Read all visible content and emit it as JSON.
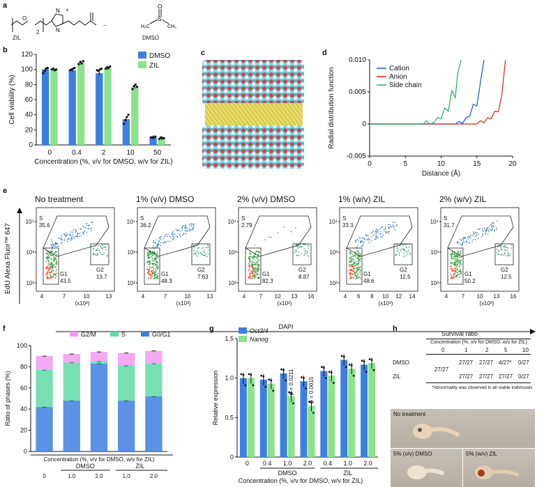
{
  "panel_letters": {
    "a": "a",
    "b": "b",
    "c": "c",
    "d": "d",
    "e": "e",
    "f": "f",
    "g": "g",
    "h": "h"
  },
  "panel_a": {
    "zil_label": "ZIL",
    "dmso_label": "DMSO",
    "plus_sign": "+",
    "minus_sign": "−",
    "subscript_2": "2"
  },
  "panel_e": {
    "xaxis_title": "DAPI",
    "yaxis_title": "EdU Alexa Fluor™ 647",
    "x_unit": "(x10³)"
  },
  "panel_f": {
    "xlabel": "Concentration (%, v/v for DMSO, w/v for ZIL)",
    "group_dmso": "DMSO",
    "group_zil": "ZIL"
  },
  "panel_g": {
    "xlabel": "Concentration (%, v/v for DMSO, w/v for ZIL)",
    "group_dmso": "DMSO",
    "group_zil": "ZIL",
    "p1": "p = 0.0211",
    "p2": "p = 0.0015"
  },
  "panel_h": {
    "title": "Survival ratio",
    "subtitle": "Concentration (%, v/v for DMSO, w/v for ZIL)",
    "headers": [
      "0",
      "1",
      "2",
      "5",
      "10"
    ],
    "rows": [
      {
        "label": "DMSO",
        "values": [
          "27/27",
          "27/27",
          "4/27*",
          "0/27"
        ]
      },
      {
        "label": "ZIL",
        "values": [
          "27/27",
          "27/27",
          "27/27",
          "0/27"
        ]
      }
    ],
    "shared_control": "27/27",
    "footnote": "*Abnormality was observed in all viable indivisuals",
    "photo_labels": [
      "No treatment",
      "5% (v/v) DMSO",
      "5% (w/v) ZIL"
    ]
  },
  "colors": {
    "blue": "#3d7fe0",
    "green": "#8be38a",
    "pink": "#f09bf0",
    "teal": "#5fd9a6",
    "cation": "#1f4fd8",
    "anion": "#e02020",
    "side_chain": "#20b050"
  },
  "chart_data": [
    {
      "panel": "b",
      "type": "bar",
      "categories": [
        "0",
        "0.4",
        "2",
        "10",
        "50"
      ],
      "series": [
        {
          "name": "DMSO",
          "values": [
            100,
            99,
            95,
            34,
            10
          ]
        },
        {
          "name": "ZIL",
          "values": [
            100,
            109,
            102,
            77,
            9
          ]
        }
      ],
      "xlabel": "Concentration (%, v/v for DMSO, w/v for ZIL)",
      "ylabel": "Cell viability (%)",
      "ylim": [
        0,
        120
      ],
      "yticks": [
        0,
        20,
        40,
        60,
        80,
        100,
        120
      ],
      "legend": "top-right"
    },
    {
      "panel": "d",
      "type": "line",
      "xlabel": "Distance (Å)",
      "ylabel": "Radial distribution function",
      "xlim": [
        0,
        20
      ],
      "ylim": [
        -0.005,
        0.01
      ],
      "xticks": [
        0,
        5,
        10,
        15,
        20
      ],
      "yticks": [
        "-0.005",
        "0",
        "0.005",
        "0.010"
      ],
      "series": [
        {
          "name": "Cation",
          "x": [
            0,
            12,
            12.5,
            13,
            13.5,
            14,
            14.5,
            15,
            15.5,
            16
          ],
          "y": [
            0,
            0,
            0.0004,
            0.0001,
            0.001,
            0.0012,
            0.0031,
            0.0028,
            0.0065,
            0.01
          ]
        },
        {
          "name": "Anion",
          "x": [
            0,
            15,
            15.5,
            16,
            16.5,
            17,
            17.5,
            18,
            18.5,
            19
          ],
          "y": [
            0,
            0,
            0.0005,
            0.0002,
            0.001,
            0.0008,
            0.002,
            0.0019,
            0.0045,
            0.01
          ]
        },
        {
          "name": "Side chain",
          "x": [
            0,
            7.5,
            8,
            8.4,
            9,
            9.5,
            10,
            10.5,
            11,
            11.5,
            12,
            12.3,
            12.8
          ],
          "y": [
            0,
            0,
            0.0005,
            0,
            0.0002,
            0.001,
            0.0008,
            0.0025,
            0.002,
            0.0052,
            0.0041,
            0.0078,
            0.01
          ]
        }
      ],
      "legend": "top-left"
    },
    {
      "panel": "e",
      "type": "scatter",
      "plots": [
        {
          "title": "No treatment",
          "gates": [
            {
              "name": "S",
              "value": "35.6"
            },
            {
              "name": "G1",
              "value": "43.5"
            },
            {
              "name": "G2",
              "value": "13.7"
            }
          ],
          "xticks": [
            "4",
            "7",
            "10",
            "13"
          ]
        },
        {
          "title": "1% (v/v) DMSO",
          "gates": [
            {
              "name": "S",
              "value": "36.2"
            },
            {
              "name": "G1",
              "value": "48.3"
            },
            {
              "name": "G2",
              "value": "7.63"
            }
          ],
          "xticks": [
            "4",
            "7",
            "10",
            "13"
          ]
        },
        {
          "title": "2% (v/v) DMSO",
          "gates": [
            {
              "name": "S",
              "value": "2.79"
            },
            {
              "name": "G1",
              "value": "82.3"
            },
            {
              "name": "G2",
              "value": "8.87"
            }
          ],
          "xticks": [
            "4",
            "7",
            "10",
            "13",
            "16"
          ]
        },
        {
          "title": "1% (w/v) ZIL",
          "gates": [
            {
              "name": "S",
              "value": "33.3"
            },
            {
              "name": "G1",
              "value": "48.6"
            },
            {
              "name": "G2",
              "value": "12.5"
            }
          ],
          "xticks": [
            "4",
            "6",
            "8",
            "10",
            "12",
            "14"
          ]
        },
        {
          "title": "2% (w/v) ZIL",
          "gates": [
            {
              "name": "S",
              "value": "31.7"
            },
            {
              "name": "G1",
              "value": "50.2"
            },
            {
              "name": "G2",
              "value": "12.5"
            }
          ],
          "xticks": [
            "4",
            "7",
            "10",
            "13",
            "16"
          ]
        }
      ],
      "yticks": [
        "10²",
        "10³",
        "10⁴"
      ]
    },
    {
      "panel": "f",
      "type": "bar",
      "categories": [
        "0",
        "1.0",
        "2.0",
        "1.0",
        "2.0"
      ],
      "series": [
        {
          "name": "G0/G1",
          "values": [
            42,
            48,
            83,
            48,
            52
          ]
        },
        {
          "name": "S",
          "values": [
            35,
            36,
            2,
            33,
            31
          ]
        },
        {
          "name": "G2/M",
          "values": [
            13,
            8,
            9,
            12,
            12
          ]
        }
      ],
      "ylabel": "Ratio of phases (%)",
      "ylim": [
        0,
        100
      ],
      "yticks": [
        0,
        20,
        40,
        60,
        80,
        100
      ],
      "legend": "top"
    },
    {
      "panel": "g",
      "type": "bar",
      "categories": [
        "0",
        "0.4",
        "1.0",
        "2.0",
        "0.4",
        "1.0",
        "2.0"
      ],
      "series": [
        {
          "name": "Oct3/4",
          "values": [
            1.0,
            0.98,
            1.06,
            0.96,
            1.09,
            1.23,
            1.17
          ]
        },
        {
          "name": "Nanog",
          "values": [
            1.0,
            0.93,
            0.77,
            0.65,
            1.03,
            1.12,
            1.19
          ]
        }
      ],
      "ylabel": "Relative expression",
      "ylim": [
        0,
        1.5
      ],
      "yticks": [
        "0",
        "0.5",
        "1.0",
        "1.5"
      ],
      "legend": "top-left"
    }
  ]
}
